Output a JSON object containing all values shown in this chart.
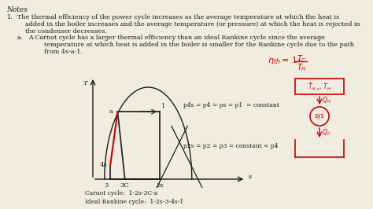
{
  "bg_color": "#f0ece0",
  "notes_title": "Notes",
  "note1_num": "1.",
  "note1_text": "The thermal efficiency of the power cycle increases as the average temperature at which the heat is\n    added in the boiler increases and the average temperature (or pressure) at which the heat is rejected in\n    the condenser decreases.",
  "note1a_num": "a.",
  "note1a_text": "A Carnot cycle has a larger thermal efficiency than an ideal Rankine cycle since the average\n        temperature at which heat is added in the boiler is smaller for the Rankine cycle due to the path\n        from 4s-a-1.",
  "carnot_label": "Carnot cycle:  1-2s-3C-a",
  "rankine_label": "Ideal Rankine cycle:  1-2s-3-4s-1",
  "p_high_label": "p4s = p4 = ps = p1  = constant",
  "p_low_label": "p2s = p2 = p3 = constant < p4",
  "ylabel": "T",
  "xlabel": "s",
  "text_color": "#1a1a1a",
  "line_color": "#1a1a1a",
  "red_color": "#cc0000",
  "title_fontsize": 6.5,
  "text_fontsize": 5.8,
  "label_fontsize": 5.8,
  "diagram_fontsize": 6.0,
  "annot_fontsize": 5.5
}
